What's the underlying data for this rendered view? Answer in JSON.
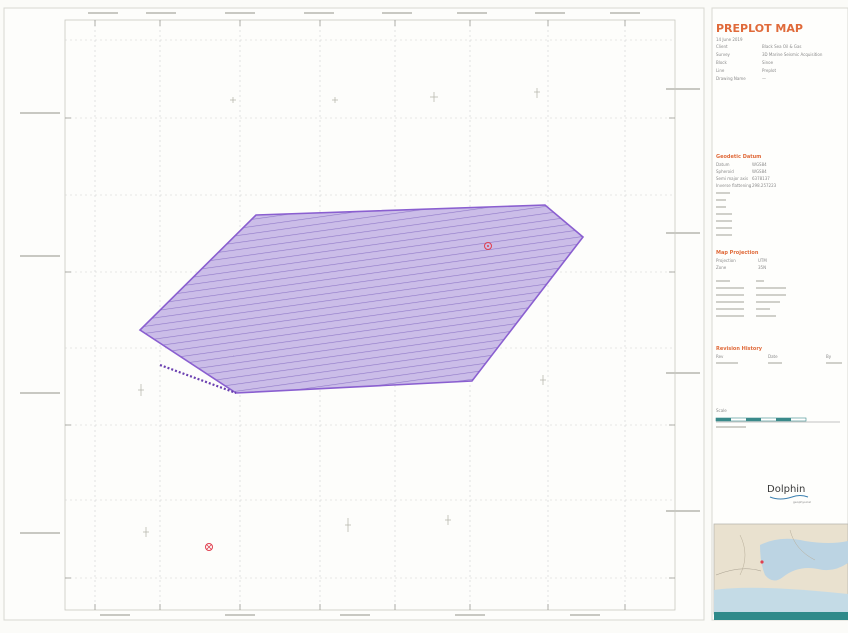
{
  "title_block": {
    "title": "PREPLOT MAP",
    "subtitle": "14 June 2019",
    "header_rows": [
      {
        "label": "Client",
        "value": "Black Sea Oil & Gas"
      },
      {
        "label": "Survey",
        "value": "3D Marine Seismic Acquisition"
      },
      {
        "label": "Block",
        "value": "Sinoe"
      },
      {
        "label": "Line",
        "value": "Preplot"
      },
      {
        "label": "Drawing Name",
        "value": "—"
      }
    ],
    "geodetic_heading": "Geodetic Datum",
    "geodetic_rows": [
      {
        "label": "Datum",
        "value": "WGS84"
      },
      {
        "label": "Spheroid",
        "value": "WGS84"
      },
      {
        "label": "Semi major axis",
        "value": "6378137"
      },
      {
        "label": "Inverse flattening",
        "value": "298.257223"
      }
    ],
    "projection_heading": "Map Projection",
    "projection_rows": [
      {
        "label": "Projection",
        "value": "UTM"
      },
      {
        "label": "Zone",
        "value": "35N"
      }
    ],
    "revision_heading": "Revision History",
    "revision_cols": [
      "Rev",
      "Date",
      "By"
    ],
    "scale_label": "Scale",
    "company": "Dolphin",
    "company_sub": "geophysical"
  },
  "map": {
    "north_marker_color": "#e04050",
    "polygon_fill": "#b9a6e0",
    "polygon_stroke": "#8a5fd0"
  }
}
